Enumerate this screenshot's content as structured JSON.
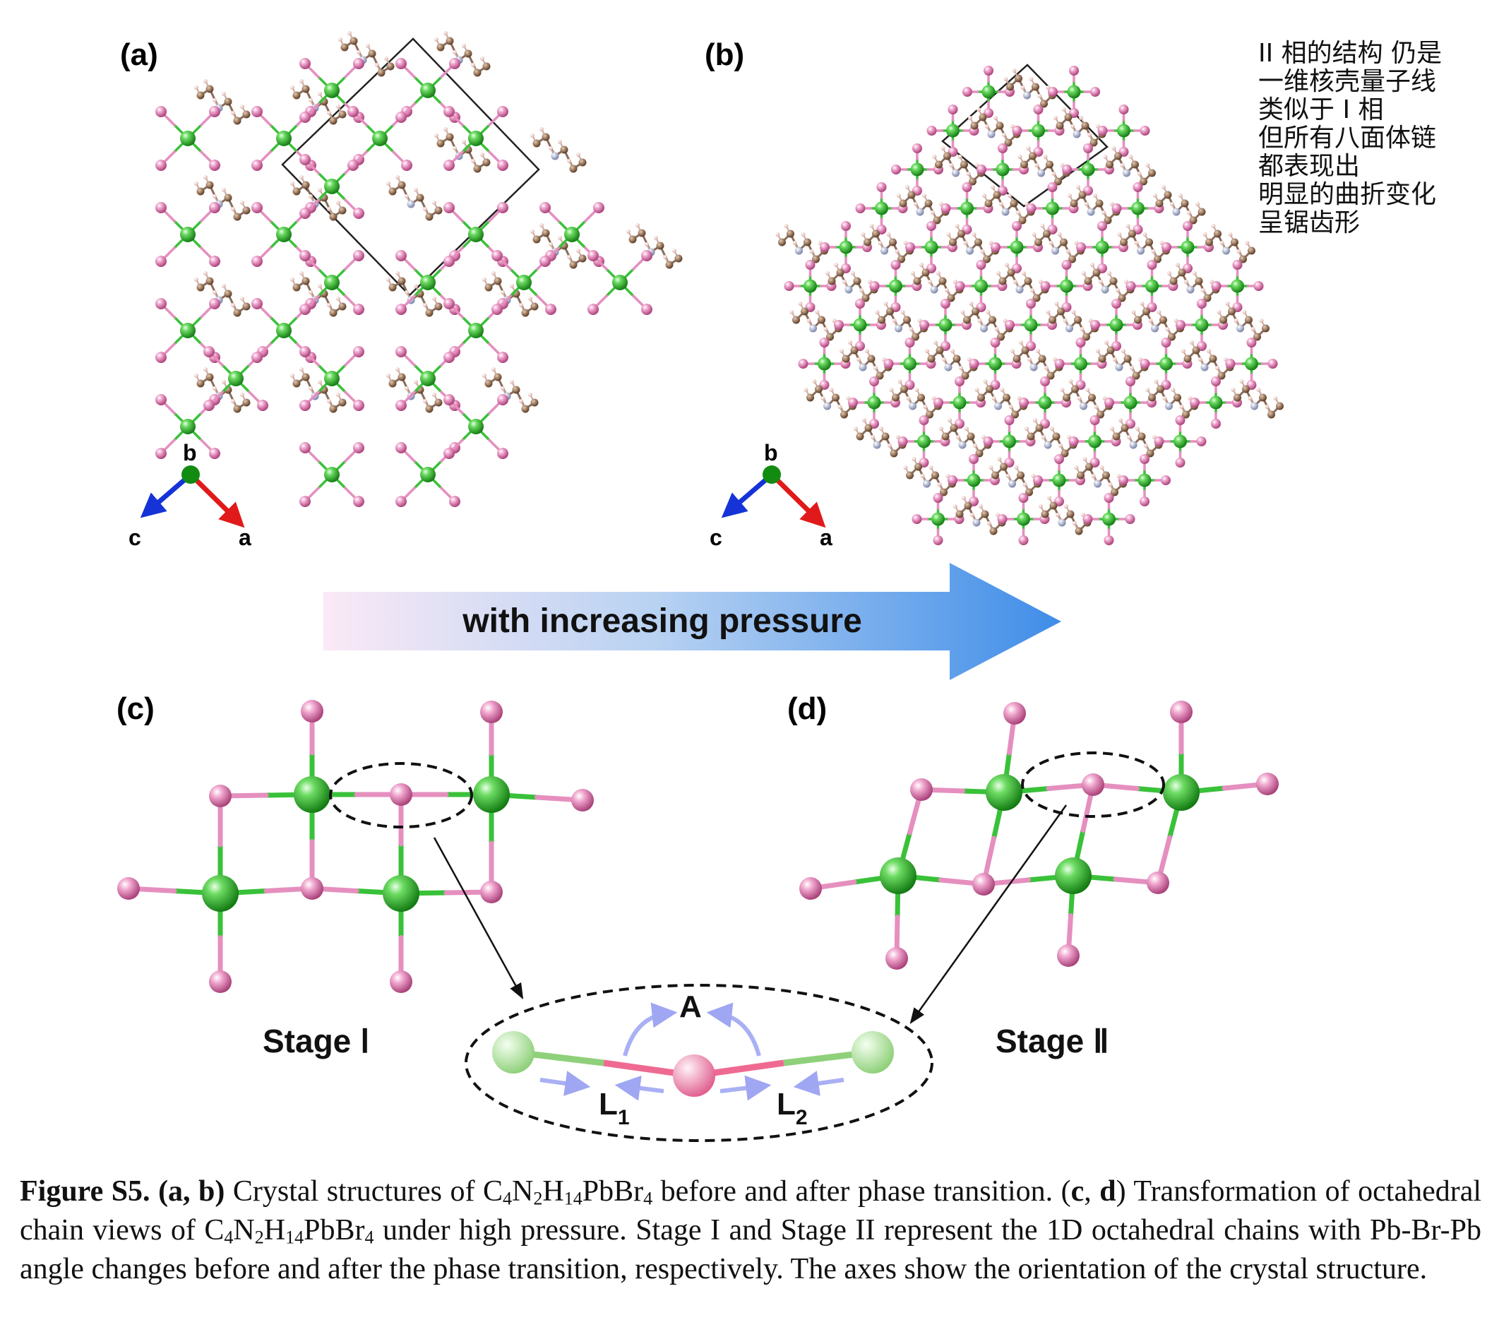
{
  "panels": {
    "a": "(a)",
    "b": "(b)",
    "c": "(c)",
    "d": "(d)"
  },
  "axes": {
    "b": "b",
    "c": "c",
    "a": "a"
  },
  "arrow_text": "with increasing pressure",
  "stage_1": "Stage Ⅰ",
  "stage_2": "Stage Ⅱ",
  "angle_label": "A",
  "length_1": {
    "letter": "L",
    "sub": "1"
  },
  "length_2": {
    "letter": "L",
    "sub": "2"
  },
  "note_lines": [
    "II 相的结构 仍是",
    "一维核壳量子线",
    "类似于 I 相",
    "但所有八面体链",
    "都表现出",
    "明显的曲折变化",
    "呈锯齿形"
  ],
  "caption": {
    "label": "Figure S5.",
    "ab_ref": "(a, b)",
    "part1_pre": "Crystal structures of C",
    "formula": {
      "c": "4",
      "n": "2",
      "h": "14",
      "br": "4"
    },
    "part1_post": " before and after phase transition.",
    "cd_ref_open": "(",
    "cd_c": "c",
    "cd_sep": ", ",
    "cd_d": "d",
    "cd_ref_close": ")",
    "part2_pre": "Transformation of octahedral chain views of C",
    "part2_post": " under high pressure. Stage I and Stage II represent the 1D octahedral chains with Pb-Br-Pb angle changes before and after the phase transition, respectively. The axes show the orientation of the crystal structure."
  },
  "colors": {
    "pb": "#2db82d",
    "br": "#e27fb4",
    "c": "#8b5a3c",
    "n": "#9aa6c8",
    "h": "#f4d7cf",
    "axis_c": "#1533d6",
    "axis_a": "#e01a1a",
    "axis_b": "#118c11"
  }
}
